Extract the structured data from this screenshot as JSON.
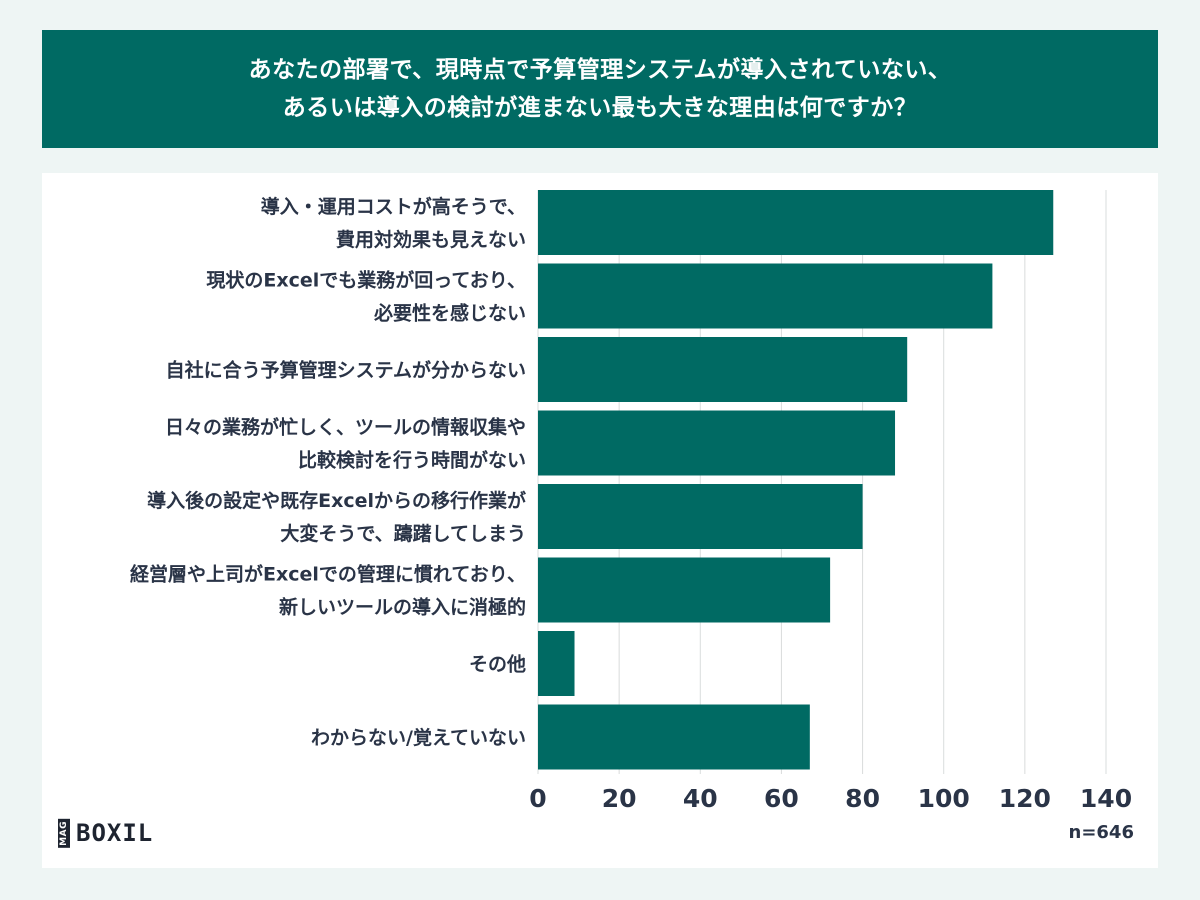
{
  "header": {
    "title_line1": "あなたの部署で、現時点で予算管理システムが導入されていない、",
    "title_line2": "あるいは導入の検討が進まない最も大きな理由は何ですか？"
  },
  "brand": {
    "mag": "MAG",
    "name": "BOXIL"
  },
  "colors": {
    "bar": "#006a63",
    "header_bg": "#006a63",
    "text": "#2a3447",
    "grid": "#d9dcdc"
  },
  "chart_data": {
    "type": "bar",
    "orientation": "horizontal",
    "categories": [
      [
        "導入・運用コストが高そうで、",
        "費用対効果も見えない"
      ],
      [
        "現状のExcelでも業務が回っており、",
        "必要性を感じない"
      ],
      [
        "自社に合う予算管理システムが分からない"
      ],
      [
        "日々の業務が忙しく、ツールの情報収集や",
        "比較検討を行う時間がない"
      ],
      [
        "導入後の設定や既存Excelからの移行作業が",
        "大変そうで、躊躇してしまう"
      ],
      [
        "経営層や上司がExcelでの管理に慣れており、",
        "新しいツールの導入に消極的"
      ],
      [
        "その他"
      ],
      [
        "わからない/覚えていない"
      ]
    ],
    "values": [
      127,
      112,
      91,
      88,
      80,
      72,
      9,
      67
    ],
    "xlim": [
      0,
      140
    ],
    "xticks": [
      "0",
      "20",
      "40",
      "60",
      "80",
      "100",
      "120",
      "140"
    ],
    "grid": true,
    "note": "n=646"
  }
}
